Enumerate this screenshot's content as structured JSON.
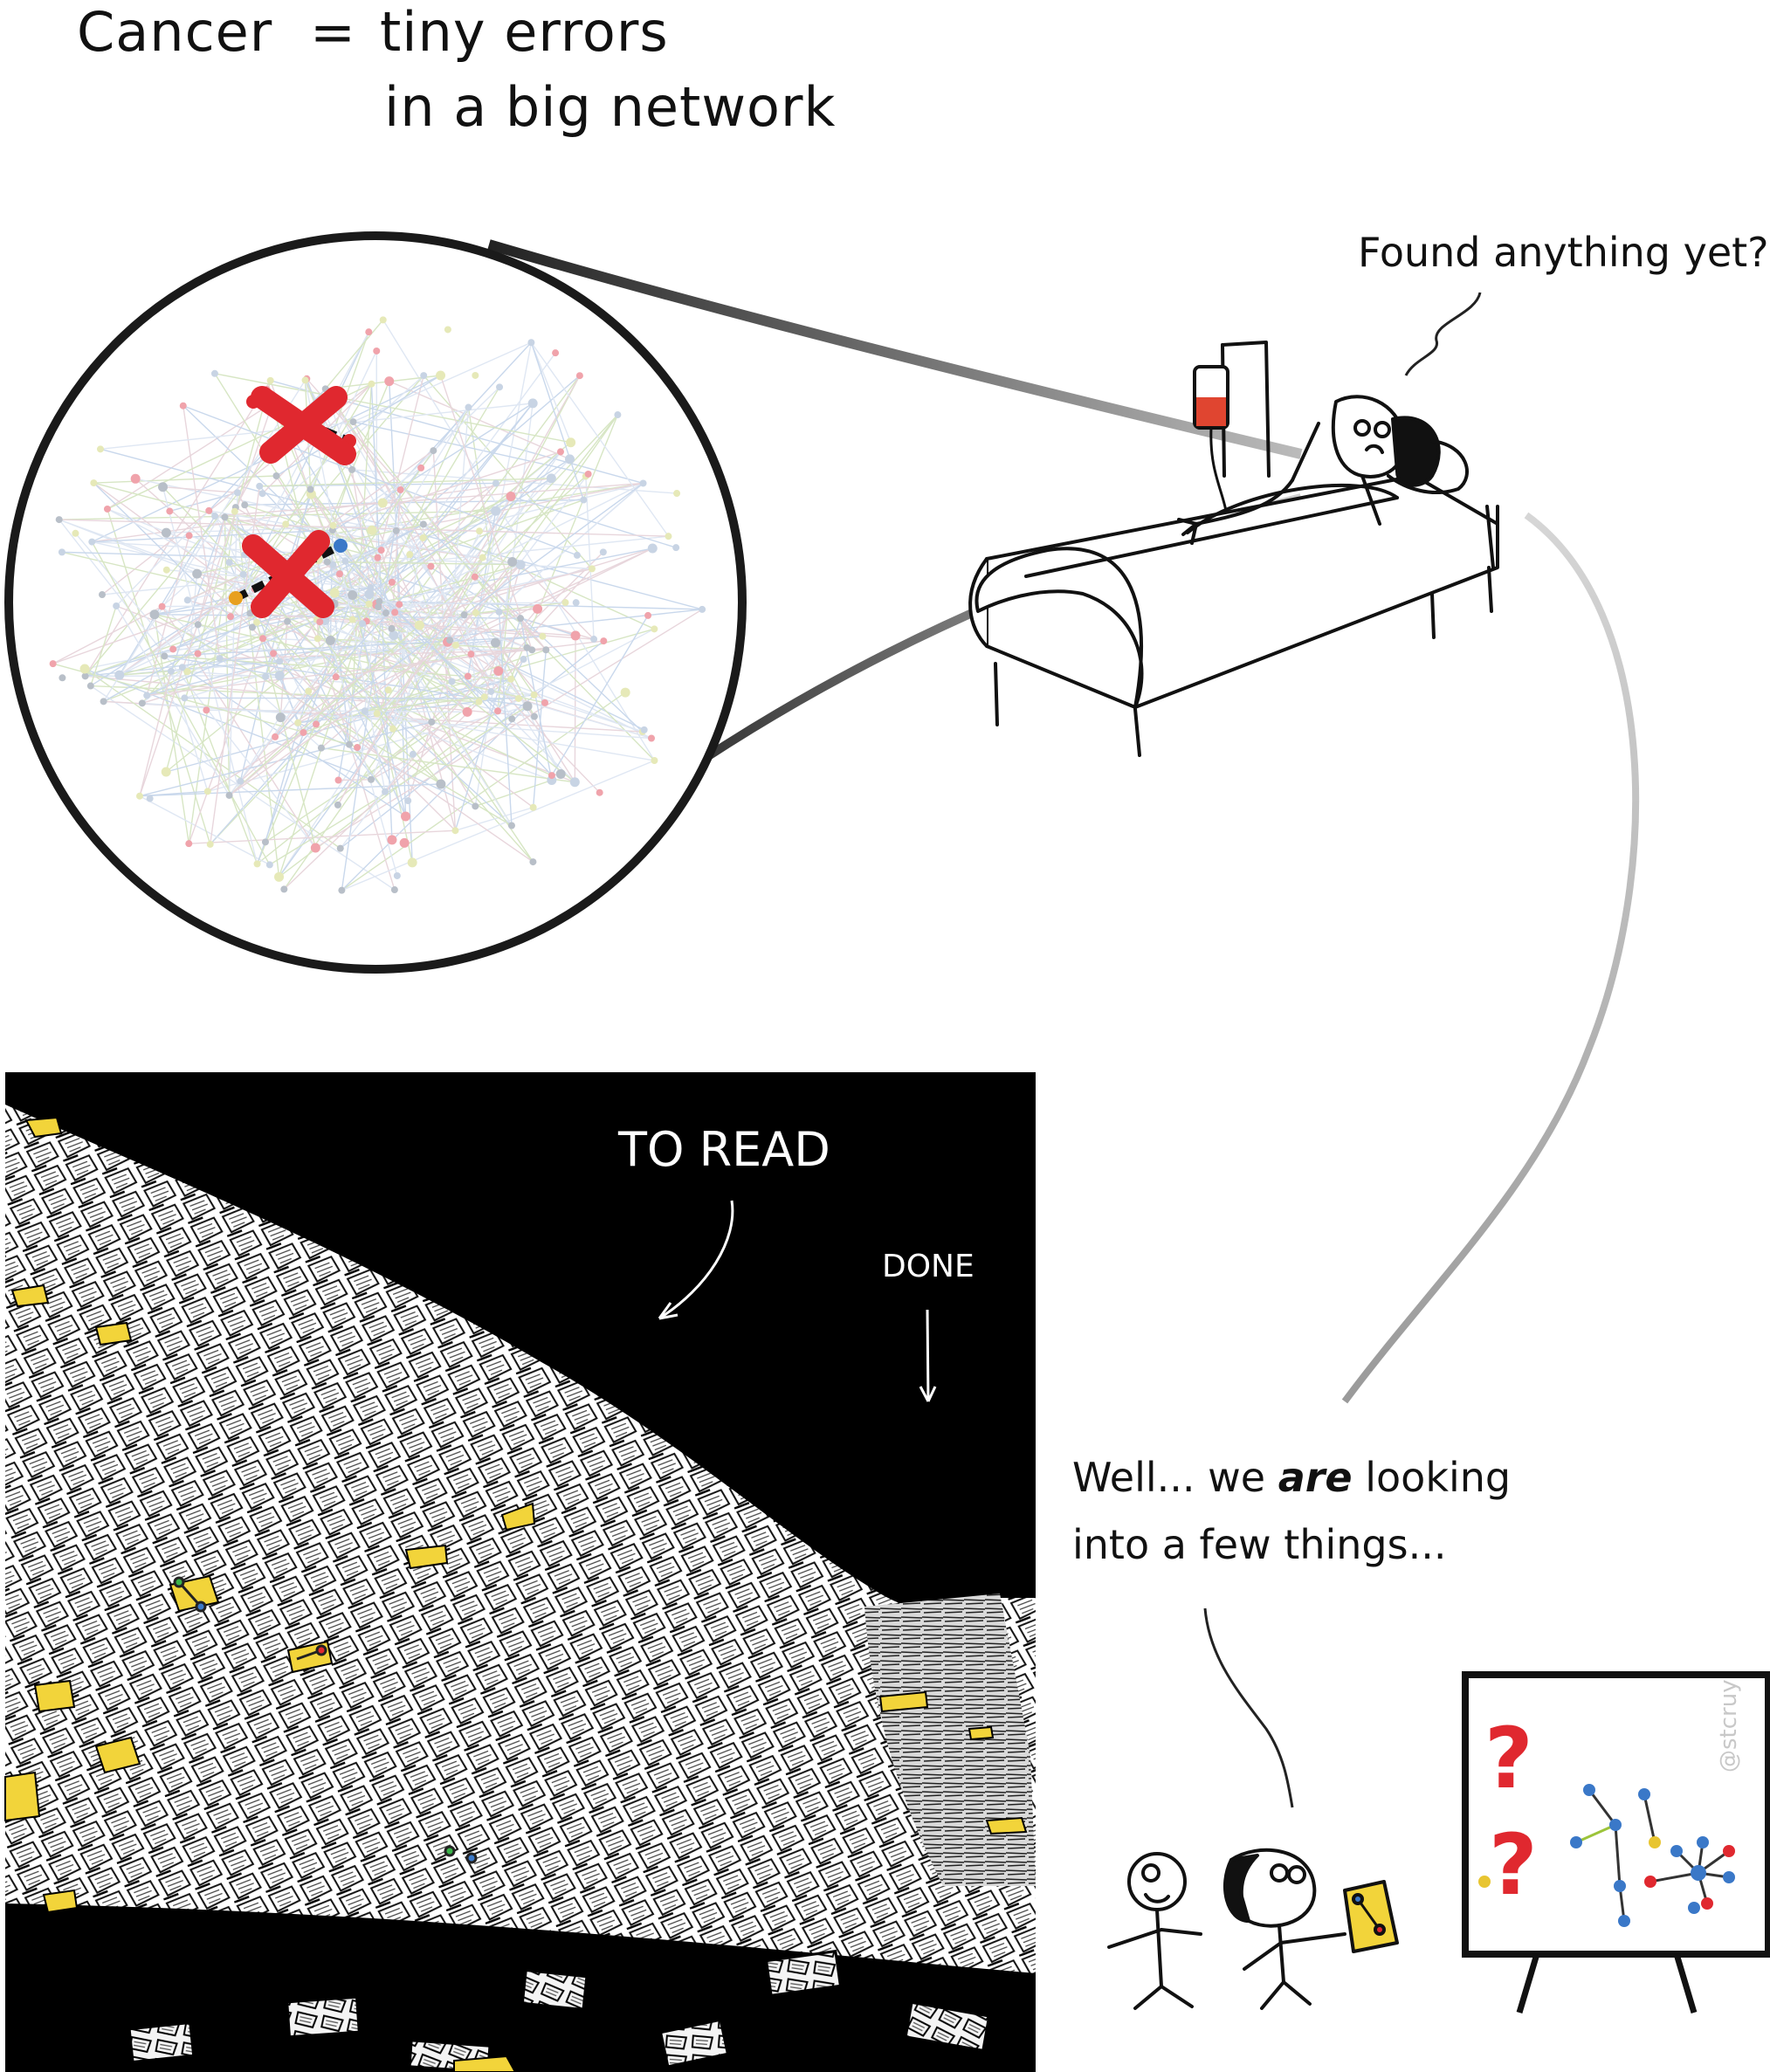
{
  "title": {
    "left": "Cancer",
    "equals": "=",
    "line1": "tiny errors",
    "line2": "in a big network"
  },
  "patient_speech": "Found anything yet?",
  "researcher_speech": {
    "line1_pre": "Well... we ",
    "line1_em": "are",
    "line1_post": " looking",
    "line2": "into a few things..."
  },
  "papers_panel": {
    "to_read": "TO READ",
    "done": "DONE"
  },
  "board": {
    "question_marks": [
      "?",
      "?"
    ]
  },
  "watermark": "@stcruy",
  "colors": {
    "error_red": "#e0282f",
    "paper_yellow": "#f2d43a",
    "node_blue": "#3a78c8",
    "node_yellow": "#e8c531",
    "iv_red": "#e04530"
  }
}
